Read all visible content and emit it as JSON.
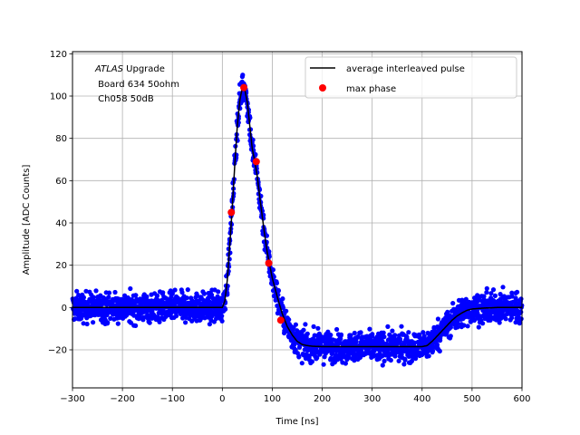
{
  "chart_data": {
    "type": "scatter",
    "xlabel": "Time [ns]",
    "ylabel": "Amplitude [ADC Counts]",
    "xlim": [
      -300,
      600
    ],
    "ylim": [
      -38,
      121
    ],
    "xticks": [
      -300,
      -200,
      -100,
      0,
      100,
      200,
      300,
      400,
      500,
      600
    ],
    "yticks": [
      -20,
      0,
      20,
      40,
      60,
      80,
      100,
      120
    ],
    "grid": true,
    "legend_position": "top-right",
    "annotation": {
      "line1_italic": "ATLAS",
      "line1_rest": " Upgrade",
      "line2": " Board 634 50ohm",
      "line3": " Ch058 50dB"
    },
    "series": [
      {
        "name": "",
        "kind": "scatter-band",
        "color": "#0000ff",
        "description": "blue interleaved sample points scattered around the average pulse with noise of about ±8 ADC counts",
        "noise_amplitude": 8
      },
      {
        "name": "average interleaved pulse",
        "kind": "line",
        "color": "#000000",
        "x": [
          -300,
          -200,
          -100,
          -20,
          0,
          5,
          10,
          15,
          20,
          25,
          30,
          35,
          40,
          45,
          50,
          55,
          60,
          65,
          70,
          75,
          80,
          85,
          90,
          95,
          100,
          110,
          120,
          130,
          140,
          150,
          160,
          170,
          180,
          200,
          250,
          300,
          350,
          400,
          410,
          420,
          430,
          440,
          450,
          460,
          470,
          480,
          490,
          500,
          520,
          550,
          600
        ],
        "y": [
          0,
          0,
          0,
          0,
          0,
          3,
          13,
          30,
          48,
          68,
          86,
          98,
          104,
          103,
          97,
          86,
          75,
          69,
          62,
          52,
          43,
          34,
          26,
          20,
          14,
          5,
          -3,
          -9,
          -13,
          -16,
          -17.5,
          -18,
          -18.3,
          -18.5,
          -18.5,
          -18.5,
          -18.5,
          -18.5,
          -18,
          -16,
          -13.5,
          -11,
          -8.5,
          -6,
          -4,
          -2.5,
          -1.3,
          -0.7,
          -0.3,
          0,
          0
        ]
      },
      {
        "name": "max phase",
        "kind": "markers",
        "color": "#ff0000",
        "x": [
          18,
          43,
          68,
          93,
          117
        ],
        "y": [
          45,
          104,
          69,
          21,
          -6
        ]
      }
    ]
  }
}
